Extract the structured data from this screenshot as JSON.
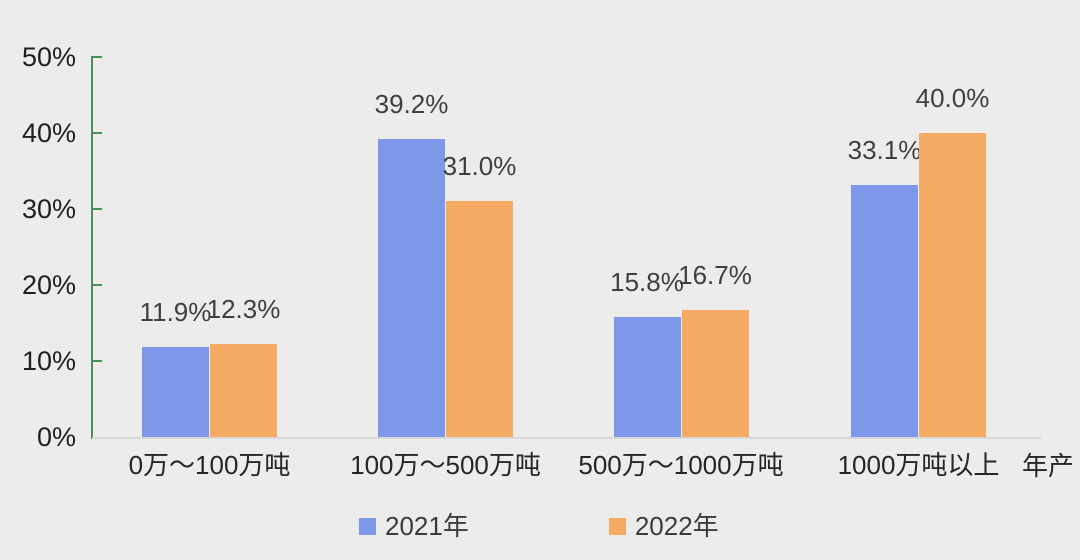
{
  "chart_data": {
    "type": "bar",
    "title": "",
    "categories": [
      "0万～100万吨",
      "100万～500万吨",
      "500万～1000万吨",
      "1000万吨以上"
    ],
    "series": [
      {
        "name": "2021年",
        "color": "#7D98E8",
        "values": [
          11.9,
          39.2,
          15.8,
          33.1
        ]
      },
      {
        "name": "2022年",
        "color": "#F5AB63",
        "values": [
          12.3,
          31.0,
          16.7,
          40.0
        ]
      }
    ],
    "value_labels": [
      [
        "11.9%",
        "39.2%",
        "15.8%",
        "33.1%"
      ],
      [
        "12.3%",
        "31.0%",
        "16.7%",
        "40.0%"
      ]
    ],
    "y_ticks": [
      "0%",
      "10%",
      "20%",
      "30%",
      "40%",
      "50%"
    ],
    "ylim": [
      0,
      50
    ],
    "y_tick_step": 10,
    "x_axis_note": "年产",
    "grid": false,
    "legend_position": "bottom"
  },
  "colors": {
    "background": "#ECECEC",
    "axis_line": "#46915A",
    "baseline": "#D8D8D8",
    "tick_label": "#1F1F1F",
    "value_label": "#3F3F3F",
    "category_label": "#262626",
    "legend_label": "#3C3C3C"
  }
}
